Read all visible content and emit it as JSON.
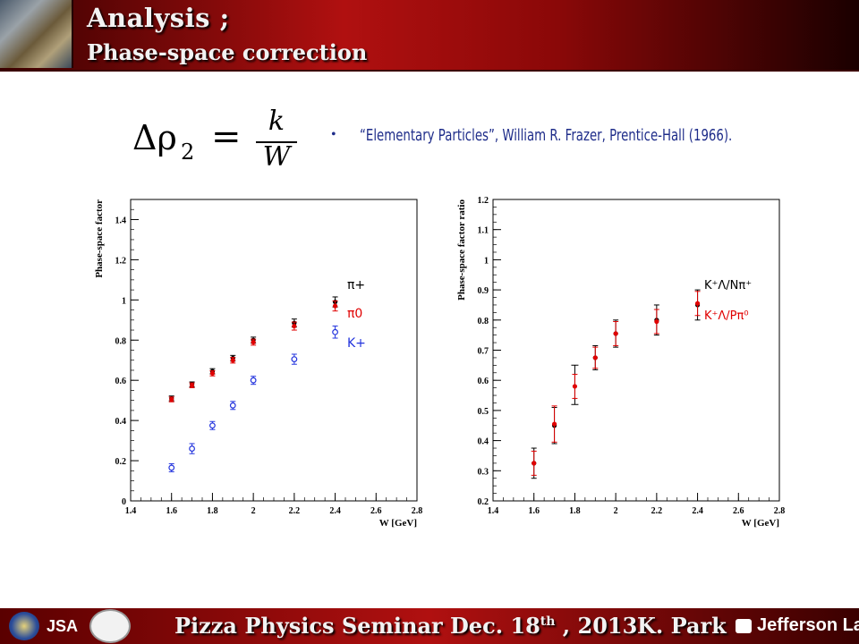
{
  "header": {
    "title": "Analysis ;",
    "subtitle": "Phase-space correction"
  },
  "formula": {
    "lhs_symbol": "Δρ",
    "lhs_subscript": "2",
    "equals": "=",
    "numerator": "k",
    "denominator": "W"
  },
  "reference": {
    "bullet": "•",
    "text": "“Elementary Particles”, William R. Frazer, Prentice-Hall (1966)."
  },
  "chart_data": [
    {
      "type": "scatter",
      "title": "",
      "xlabel": "W [GeV]",
      "ylabel": "Phase-space factor",
      "xlim": [
        1.4,
        2.8
      ],
      "ylim": [
        0,
        1.5
      ],
      "xticks": [
        1.4,
        1.6,
        1.8,
        2.0,
        2.2,
        2.4,
        2.6,
        2.8
      ],
      "xtick_labels": [
        "1.4",
        "1.6",
        "1.8",
        "2",
        "2.2",
        "2.4",
        "2.6",
        "2.8"
      ],
      "yticks": [
        0,
        0.2,
        0.4,
        0.6,
        0.8,
        1.0,
        1.2,
        1.4
      ],
      "ytick_labels": [
        "0",
        "0.2",
        "0.4",
        "0.6",
        "0.8",
        "1",
        "1.2",
        "1.4"
      ],
      "legend_placement": "right",
      "series": [
        {
          "name": "π+",
          "color": "#000000",
          "marker": "filled-circle",
          "x": [
            1.6,
            1.7,
            1.8,
            1.9,
            2.0,
            2.2,
            2.4
          ],
          "y": [
            0.51,
            0.58,
            0.645,
            0.71,
            0.8,
            0.885,
            0.99
          ],
          "err": [
            0.012,
            0.012,
            0.013,
            0.014,
            0.015,
            0.02,
            0.025
          ]
        },
        {
          "name": "π0",
          "color": "#e00000",
          "marker": "filled-circle",
          "x": [
            1.6,
            1.7,
            1.8,
            1.9,
            2.0,
            2.2,
            2.4
          ],
          "y": [
            0.505,
            0.575,
            0.635,
            0.7,
            0.79,
            0.87,
            0.97
          ],
          "err": [
            0.012,
            0.012,
            0.013,
            0.014,
            0.015,
            0.02,
            0.025
          ]
        },
        {
          "name": "K+",
          "color": "#2233dd",
          "marker": "open-circle",
          "x": [
            1.6,
            1.7,
            1.8,
            1.9,
            2.0,
            2.2,
            2.4
          ],
          "y": [
            0.165,
            0.26,
            0.375,
            0.475,
            0.6,
            0.705,
            0.84
          ],
          "err": [
            0.02,
            0.025,
            0.02,
            0.02,
            0.02,
            0.025,
            0.03
          ]
        }
      ]
    },
    {
      "type": "scatter",
      "title": "",
      "xlabel": "W [GeV]",
      "ylabel": "Phase-space factor ratio",
      "xlim": [
        1.4,
        2.8
      ],
      "ylim": [
        0.2,
        1.2
      ],
      "xticks": [
        1.4,
        1.6,
        1.8,
        2.0,
        2.2,
        2.4,
        2.6,
        2.8
      ],
      "xtick_labels": [
        "1.4",
        "1.6",
        "1.8",
        "2",
        "2.2",
        "2.4",
        "2.6",
        "2.8"
      ],
      "yticks": [
        0.2,
        0.3,
        0.4,
        0.5,
        0.6,
        0.7,
        0.8,
        0.9,
        1.0,
        1.1,
        1.2
      ],
      "ytick_labels": [
        "0.2",
        "0.3",
        "0.4",
        "0.5",
        "0.6",
        "0.7",
        "0.8",
        "0.9",
        "1",
        "1.1",
        "1.2"
      ],
      "legend_placement": "right",
      "series": [
        {
          "name": "K⁺Λ/Nπ⁺",
          "color": "#000000",
          "marker": "filled-circle",
          "x": [
            1.6,
            1.7,
            1.9,
            2.0,
            2.2,
            2.4
          ],
          "y": [
            0.325,
            0.45,
            0.675,
            0.755,
            0.8,
            0.85
          ],
          "err": [
            0.05,
            0.06,
            0.04,
            0.045,
            0.05,
            0.05
          ],
          "x_only_err": [
            1.8
          ],
          "y_only_err": [
            0.585
          ]
        },
        {
          "name": "K⁺Λ/Pπ⁰",
          "color": "#e00000",
          "marker": "filled-circle",
          "x": [
            1.6,
            1.7,
            1.8,
            1.9,
            2.0,
            2.2,
            2.4
          ],
          "y": [
            0.325,
            0.455,
            0.58,
            0.675,
            0.755,
            0.795,
            0.855
          ],
          "err": [
            0.04,
            0.06,
            0.04,
            0.035,
            0.04,
            0.04,
            0.04
          ]
        }
      ]
    }
  ],
  "footer": {
    "logo_text": "JSA",
    "seminar_prefix": "Pizza Physics  Seminar  Dec. 18",
    "seminar_sup": "th",
    "seminar_suffix": " , 2013",
    "author": "K. Park",
    "lab": "Jefferson Lab"
  }
}
